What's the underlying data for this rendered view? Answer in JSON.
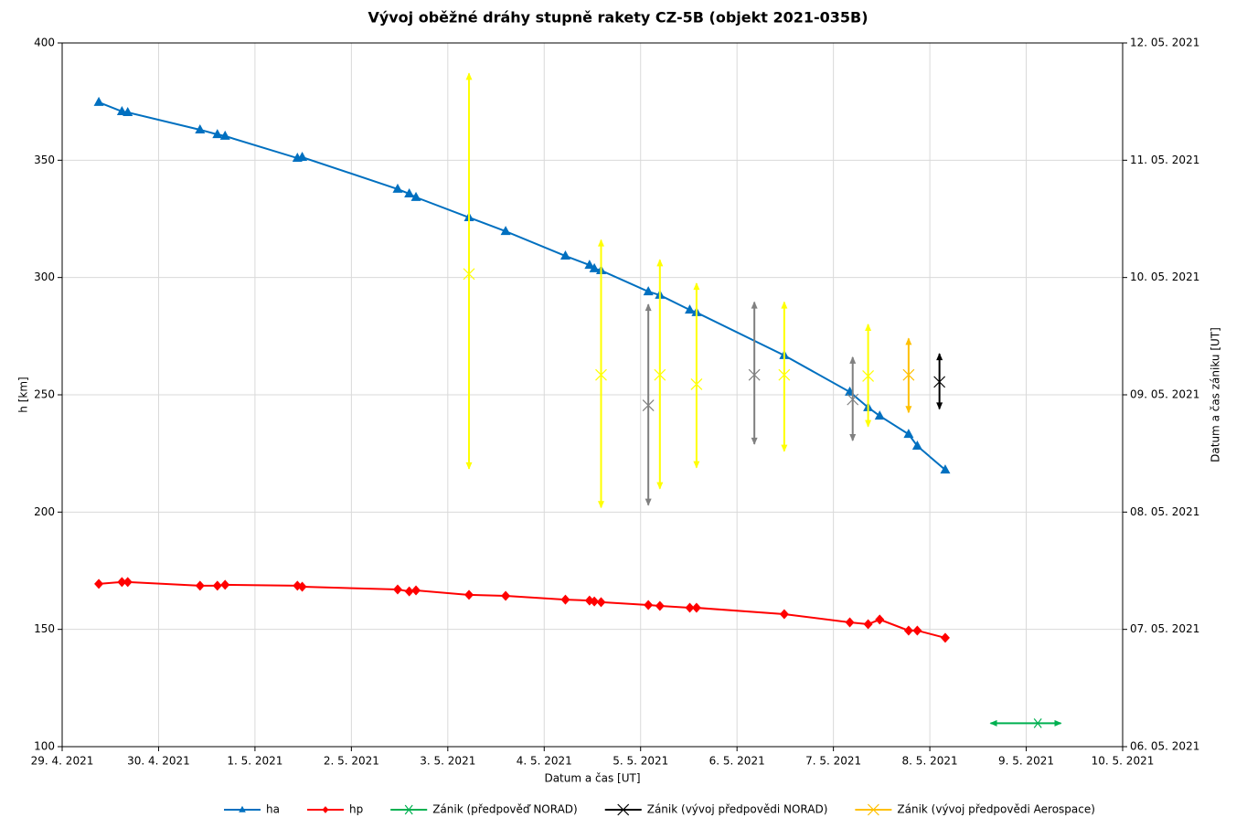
{
  "chart_data": {
    "type": "line",
    "title": "Vývoj oběžné dráhy stupně rakety CZ-5B (objekt 2021-035B)",
    "x_label": "Datum a čas [UT]",
    "y_label": "h [km]",
    "y2_label": "Datum a čas zániku [UT]",
    "xlim": [
      0,
      11
    ],
    "xticks": [
      {
        "value": 0,
        "label": "29. 4. 2021"
      },
      {
        "value": 1,
        "label": "30. 4. 2021"
      },
      {
        "value": 2,
        "label": "1. 5. 2021"
      },
      {
        "value": 3,
        "label": "2. 5. 2021"
      },
      {
        "value": 4,
        "label": "3. 5. 2021"
      },
      {
        "value": 5,
        "label": "4. 5. 2021"
      },
      {
        "value": 6,
        "label": "5. 5. 2021"
      },
      {
        "value": 7,
        "label": "6. 5. 2021"
      },
      {
        "value": 8,
        "label": "7. 5. 2021"
      },
      {
        "value": 9,
        "label": "8. 5. 2021"
      },
      {
        "value": 10,
        "label": "9. 5. 2021"
      },
      {
        "value": 11,
        "label": "10. 5. 2021"
      }
    ],
    "ylim": [
      100,
      400
    ],
    "yticks": [
      100,
      150,
      200,
      250,
      300,
      350,
      400
    ],
    "y2lim": [
      0,
      6
    ],
    "y2ticks": [
      {
        "value": 0,
        "label": "06. 05. 2021"
      },
      {
        "value": 1,
        "label": "07. 05. 2021"
      },
      {
        "value": 2,
        "label": "08. 05. 2021"
      },
      {
        "value": 3,
        "label": "09. 05. 2021"
      },
      {
        "value": 4,
        "label": "10. 05. 2021"
      },
      {
        "value": 5,
        "label": "11. 05. 2021"
      },
      {
        "value": 6,
        "label": "12. 05. 2021"
      }
    ],
    "grid": true,
    "legend": "bottom",
    "x": [
      0.38,
      0.62,
      0.68,
      1.43,
      1.61,
      1.69,
      2.44,
      2.49,
      3.48,
      3.6,
      3.67,
      4.22,
      4.6,
      5.22,
      5.47,
      5.52,
      5.59,
      6.08,
      6.2,
      6.51,
      6.58,
      7.49,
      8.17,
      8.36,
      8.48,
      8.78,
      8.87,
      9.16
    ],
    "series": [
      {
        "name": "ha",
        "color": "#0070c0",
        "marker": "triangle",
        "values": [
          374.7,
          370.8,
          370.4,
          363.0,
          361.0,
          360.3,
          350.9,
          351.3,
          337.7,
          335.7,
          334.2,
          325.6,
          319.7,
          309.2,
          305.3,
          303.8,
          303.0,
          294.0,
          292.5,
          286.2,
          285.1,
          266.8,
          251.2,
          244.6,
          241.0,
          233.2,
          228.2,
          218.0
        ]
      },
      {
        "name": "hp",
        "color": "#ff0000",
        "marker": "diamond",
        "values": [
          169.4,
          170.2,
          170.2,
          168.6,
          168.6,
          169.0,
          168.6,
          168.2,
          167.0,
          166.2,
          166.6,
          164.7,
          164.3,
          162.7,
          162.3,
          161.9,
          161.6,
          160.4,
          160.0,
          159.2,
          159.2,
          156.5,
          153.0,
          152.2,
          154.2,
          149.5,
          149.5,
          146.4
        ]
      },
      {
        "name": "Zánik (předpověď NORAD)",
        "color": "#00b050",
        "marker": "asterisk",
        "x": [
          10.12
        ],
        "values": [
          110
        ],
        "xerr_low": [
          0.49
        ],
        "xerr_high": [
          0.24
        ]
      },
      {
        "name": "Zánik (vývoj předpovědi NORAD)",
        "color": "#000000",
        "marker": "x",
        "axis": "y2",
        "point_colors": [
          "#808080",
          "#808080",
          "#808080",
          "#000000"
        ],
        "x": [
          6.08,
          7.18,
          8.2,
          9.1
        ],
        "values": [
          2.91,
          3.17,
          2.96,
          3.11
        ],
        "err_low": [
          0.85,
          0.59,
          0.35,
          0.23
        ],
        "err_high": [
          0.86,
          0.62,
          0.36,
          0.24
        ]
      },
      {
        "name": "Zánik (vývoj předpovědi Aerospace)",
        "color": "#ffc000",
        "marker": "x",
        "axis": "y2",
        "point_colors": [
          "#ffff00",
          "#ffff00",
          "#ffff00",
          "#ffff00",
          "#ffff00",
          "#ffff00",
          "#ffc000"
        ],
        "x": [
          4.22,
          5.59,
          6.2,
          6.58,
          7.49,
          8.36,
          8.78
        ],
        "values": [
          4.03,
          3.17,
          3.17,
          3.09,
          3.17,
          3.16,
          3.17
        ],
        "err_low": [
          1.66,
          1.13,
          0.97,
          0.71,
          0.65,
          0.43,
          0.32
        ],
        "err_high": [
          1.71,
          1.15,
          0.98,
          0.86,
          0.62,
          0.44,
          0.31
        ]
      }
    ]
  }
}
